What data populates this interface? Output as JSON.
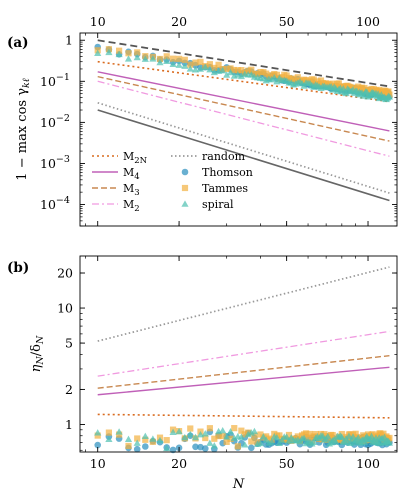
{
  "chart_data": [
    {
      "panel": "(a)",
      "type": "line",
      "xscale": "log",
      "yscale": "log",
      "xlim": [
        8.6,
        128
      ],
      "ylim": [
        3e-05,
        1.5
      ],
      "xticks": [
        {
          "value": 10,
          "label": "10"
        },
        {
          "value": 20,
          "label": "20"
        },
        {
          "value": 50,
          "label": "50"
        },
        {
          "value": 100,
          "label": "100"
        }
      ],
      "yticks": [
        {
          "value": 1,
          "label": "1"
        },
        {
          "value": 0.1,
          "label": "10",
          "exp": "−1"
        },
        {
          "value": 0.01,
          "label": "10",
          "exp": "−2"
        },
        {
          "value": 0.001,
          "label": "10",
          "exp": "−3"
        },
        {
          "value": 0.0001,
          "label": "10",
          "exp": "−4"
        }
      ],
      "ylabel": "1 − max cos γ",
      "ylabel_sub": "kℓ",
      "legend_entries": [
        {
          "key": "M2N",
          "label": "M",
          "sub": "2N"
        },
        {
          "key": "M4",
          "label": "M",
          "sub": "4"
        },
        {
          "key": "M3",
          "label": "M",
          "sub": "3"
        },
        {
          "key": "M2",
          "label": "M",
          "sub": "2"
        },
        {
          "key": "random",
          "label": "random"
        },
        {
          "key": "thomson",
          "label": "Thomson"
        },
        {
          "key": "tammes",
          "label": "Tammes"
        },
        {
          "key": "spiral",
          "label": "spiral"
        }
      ],
      "lines": [
        {
          "key": "bound_upper",
          "x": [
            10,
            120
          ],
          "y": [
            1.0,
            0.075
          ]
        },
        {
          "key": "bound_lower",
          "x": [
            10,
            120
          ],
          "y": [
            0.02,
            0.000125
          ]
        },
        {
          "key": "M2N",
          "x": [
            10,
            120
          ],
          "y": [
            0.3,
            0.032
          ]
        },
        {
          "key": "M4",
          "x": [
            10,
            120
          ],
          "y": [
            0.17,
            0.0062
          ]
        },
        {
          "key": "M3",
          "x": [
            10,
            120
          ],
          "y": [
            0.13,
            0.0035
          ]
        },
        {
          "key": "M2",
          "x": [
            10,
            120
          ],
          "y": [
            0.1,
            0.0015
          ]
        },
        {
          "key": "random",
          "x": [
            10,
            120
          ],
          "y": [
            0.03,
            0.00019
          ]
        }
      ],
      "scatter_trend": {
        "thomson": [
          0.6,
          0.045
        ],
        "tammes": [
          0.65,
          0.05
        ],
        "spiral": [
          0.5,
          0.04
        ]
      }
    },
    {
      "panel": "(b)",
      "type": "line",
      "xscale": "log",
      "yscale": "log",
      "xlim": [
        8.6,
        128
      ],
      "ylim": [
        0.58,
        28
      ],
      "xticks": [
        {
          "value": 10,
          "label": "10"
        },
        {
          "value": 20,
          "label": "20"
        },
        {
          "value": 50,
          "label": "50"
        },
        {
          "value": 100,
          "label": "100"
        }
      ],
      "yticks": [
        {
          "value": 1,
          "label": "1"
        },
        {
          "value": 2,
          "label": "2"
        },
        {
          "value": 5,
          "label": "5"
        },
        {
          "value": 10,
          "label": "10"
        },
        {
          "value": 20,
          "label": "20"
        }
      ],
      "xlabel": "N",
      "ylabel": "η",
      "ylabel_sub": "N",
      "ylabel_rest": "/δ",
      "ylabel_sub2": "N",
      "lines": [
        {
          "key": "random",
          "x": [
            10,
            120
          ],
          "y": [
            5.2,
            22.5
          ]
        },
        {
          "key": "M2",
          "x": [
            10,
            120
          ],
          "y": [
            2.6,
            6.3
          ]
        },
        {
          "key": "M3",
          "x": [
            10,
            120
          ],
          "y": [
            2.05,
            3.9
          ]
        },
        {
          "key": "M4",
          "x": [
            10,
            120
          ],
          "y": [
            1.8,
            3.1
          ]
        },
        {
          "key": "M2N",
          "x": [
            10,
            120
          ],
          "y": [
            1.22,
            1.14
          ]
        }
      ],
      "scatter_level": {
        "thomson": 0.72,
        "tammes": 0.78,
        "spiral": 0.74
      }
    }
  ],
  "colors": {
    "M2N": "#d96b1f",
    "M4": "#c060b8",
    "M3": "#c88850",
    "M2": "#f09ae0",
    "random": "#999999",
    "thomson": "#2a8fbd",
    "tammes": "#f2b040",
    "spiral": "#4fc0b0",
    "bound_upper": "#555555",
    "bound_lower": "#666666"
  }
}
